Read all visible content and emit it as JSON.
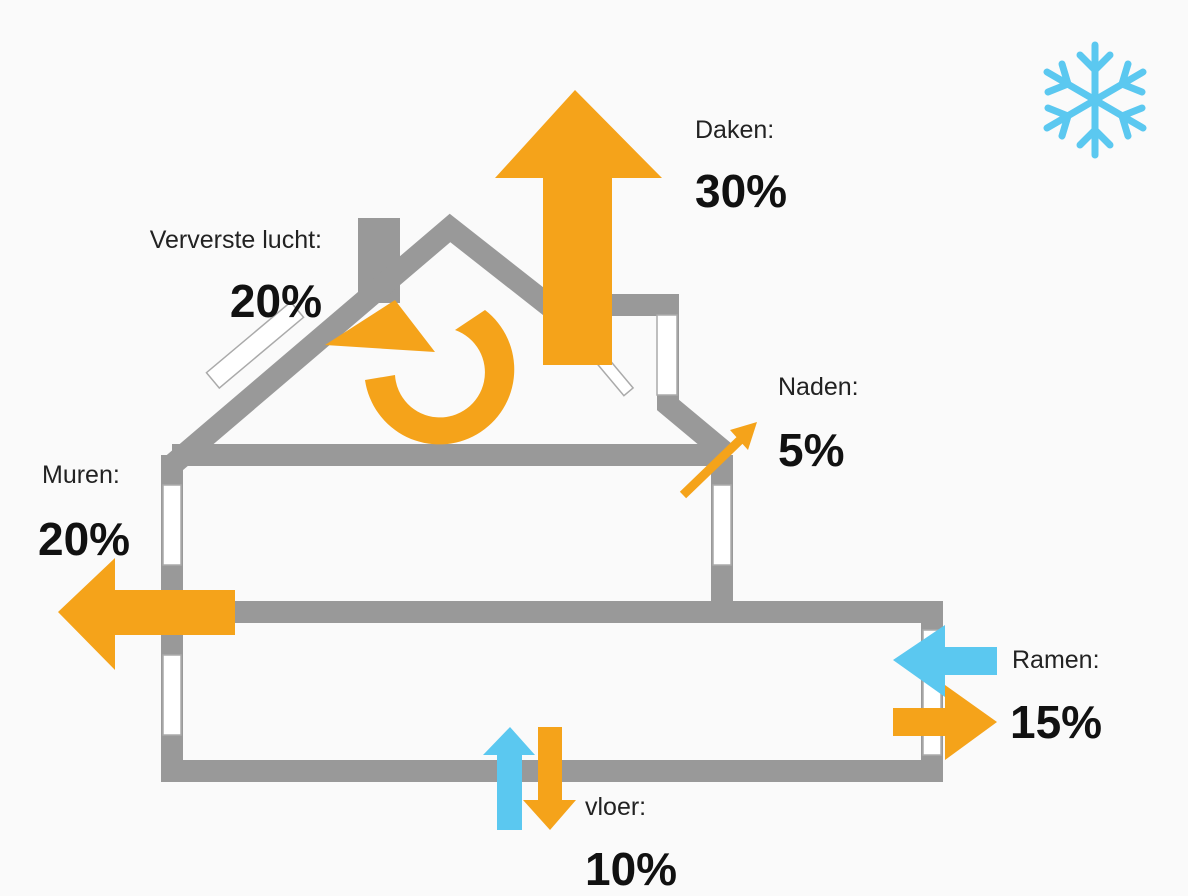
{
  "items": [
    {
      "label": "Daken:",
      "value": "30%"
    },
    {
      "label": "Ververste lucht:",
      "value": "20%"
    },
    {
      "label": "Naden:",
      "value": "5%"
    },
    {
      "label": "Muren:",
      "value": "20%"
    },
    {
      "label": "Ramen:",
      "value": "15%"
    },
    {
      "label": "vloer:",
      "value": "10%"
    }
  ]
}
